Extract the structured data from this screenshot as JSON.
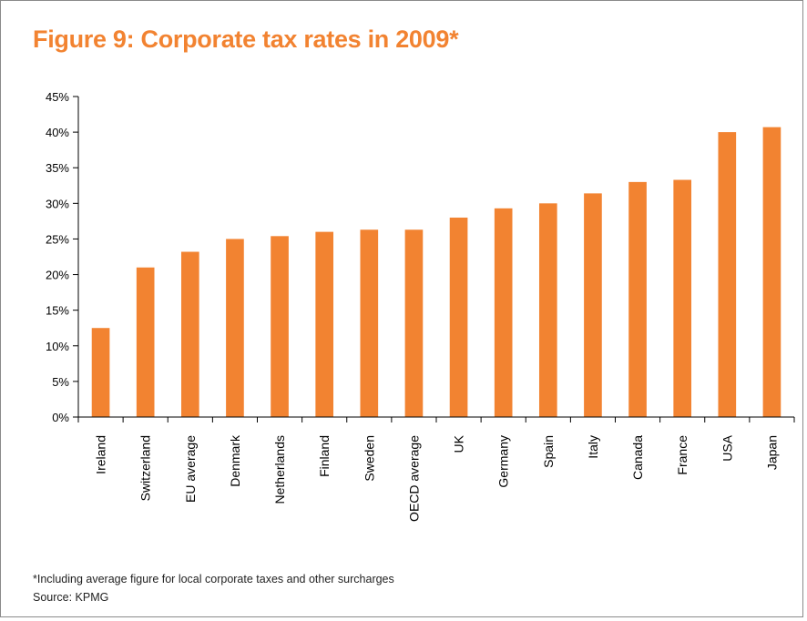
{
  "figure": {
    "title": "Figure 9: Corporate tax rates in 2009*",
    "footnote": "*Including average figure for local corporate taxes and other surcharges",
    "source": "Source: KPMG"
  },
  "colors": {
    "bar": "#f28331",
    "title": "#f28331",
    "axis": "#000000"
  },
  "chart_data": {
    "type": "bar",
    "title": "Figure 9: Corporate tax rates in 2009*",
    "xlabel": "",
    "ylabel": "",
    "ylim": [
      0,
      45
    ],
    "yticks": [
      0,
      5,
      10,
      15,
      20,
      25,
      30,
      35,
      40,
      45
    ],
    "ytick_labels": [
      "0%",
      "5%",
      "10%",
      "15%",
      "20%",
      "25%",
      "30%",
      "35%",
      "40%",
      "45%"
    ],
    "grid": false,
    "legend": "none",
    "categories": [
      "Ireland",
      "Switzerland",
      "EU average",
      "Denmark",
      "Netherlands",
      "Finland",
      "Sweden",
      "OECD average",
      "UK",
      "Germany",
      "Spain",
      "Italy",
      "Canada",
      "France",
      "USA",
      "Japan"
    ],
    "values": [
      12.5,
      21.0,
      23.2,
      25.0,
      25.4,
      26.0,
      26.3,
      26.3,
      28.0,
      29.3,
      30.0,
      31.4,
      33.0,
      33.3,
      40.0,
      40.7
    ]
  }
}
